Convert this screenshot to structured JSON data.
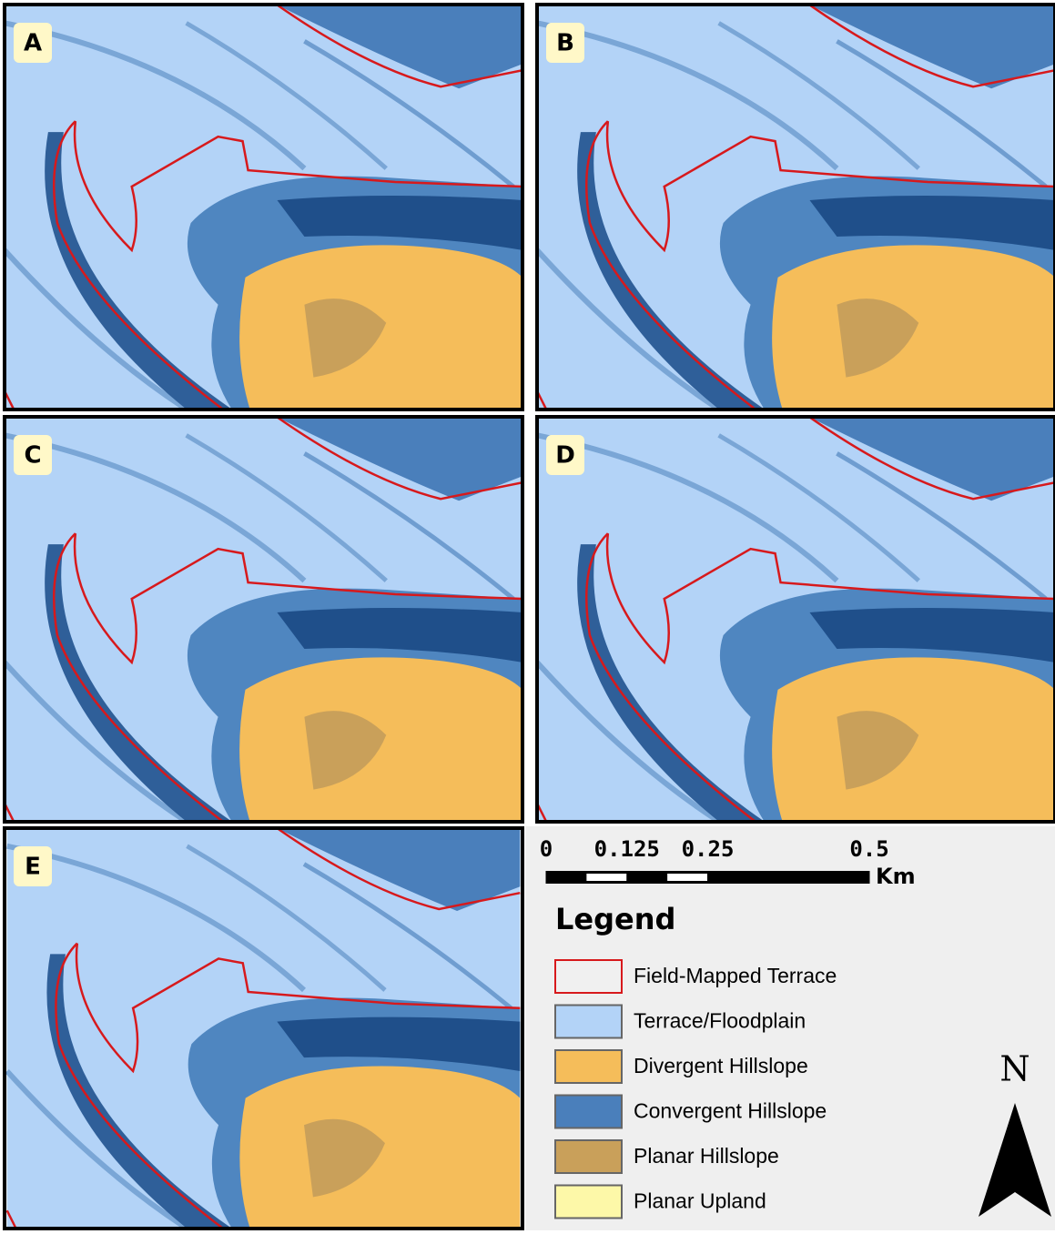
{
  "panels": [
    {
      "label": "A"
    },
    {
      "label": "B"
    },
    {
      "label": "C"
    },
    {
      "label": "D"
    },
    {
      "label": "E"
    }
  ],
  "scale_bar": {
    "ticks": [
      0,
      0.125,
      0.25,
      0.5
    ],
    "unit": "Km"
  },
  "legend": {
    "title": "Legend",
    "items": [
      {
        "label": "Field-Mapped Terrace",
        "fill": "#f0f0f0",
        "stroke": "#d7191c"
      },
      {
        "label": "Terrace/Floodplain",
        "fill": "#b3d3f7",
        "stroke": "#666666"
      },
      {
        "label": "Divergent Hillslope",
        "fill": "#f5bd5a",
        "stroke": "#666666"
      },
      {
        "label": "Convergent Hillslope",
        "fill": "#4a7fbb",
        "stroke": "#666666"
      },
      {
        "label": "Planar Hillslope",
        "fill": "#c9a05a",
        "stroke": "#666666"
      },
      {
        "label": "Planar Upland",
        "fill": "#fdf8a8",
        "stroke": "#666666"
      }
    ]
  },
  "north_arrow": "N"
}
